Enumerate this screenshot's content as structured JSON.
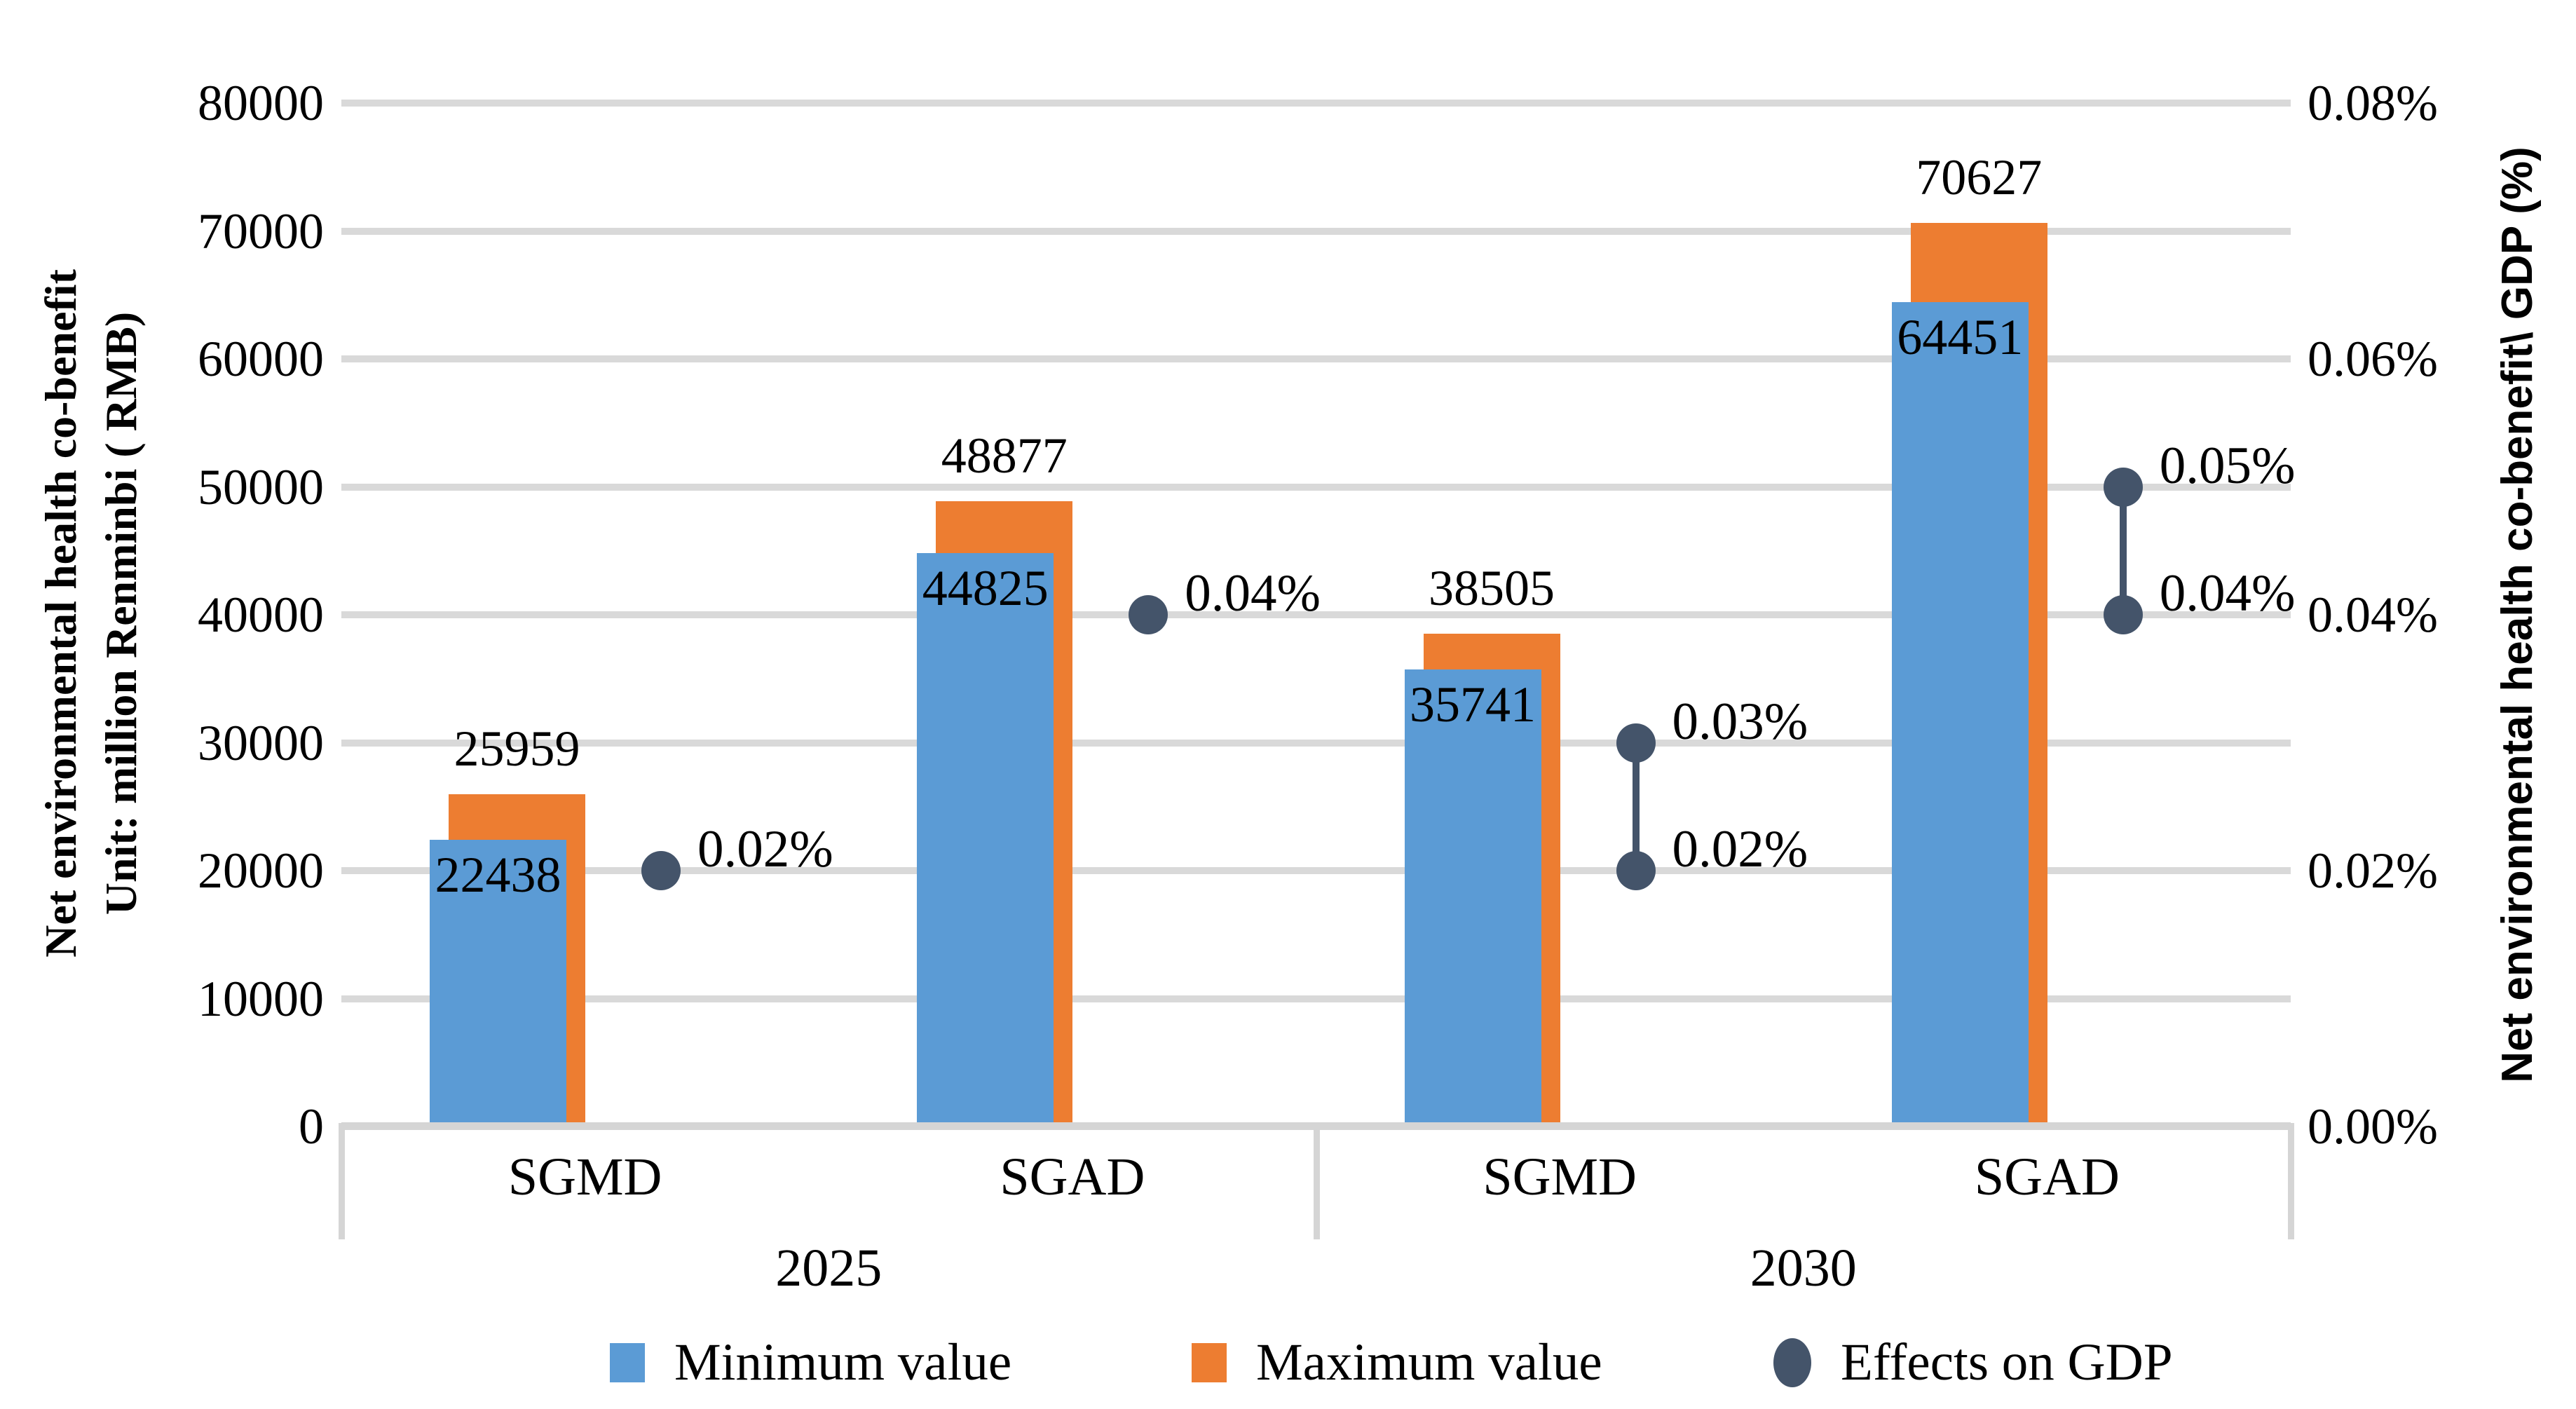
{
  "chart_data": {
    "type": "bar",
    "title": "",
    "left_axis": {
      "title_line1": "Net environmental health co-benefit",
      "title_line2": "Unit: million Renminbi ( RMB)",
      "min": 0,
      "max": 80000,
      "tick_step": 10000,
      "tick_labels": [
        "0",
        "10000",
        "20000",
        "30000",
        "40000",
        "50000",
        "60000",
        "70000",
        "80000"
      ]
    },
    "right_axis": {
      "title": "Net environmental health co-benefit\\ GDP (%)",
      "min": 0,
      "max": 0.08,
      "tick_labels": [
        "0.00%",
        "0.02%",
        "0.04%",
        "0.06%",
        "0.08%"
      ]
    },
    "grid": true,
    "legend_position": "bottom",
    "years": [
      "2025",
      "2030"
    ],
    "groups": [
      {
        "scenario": "SGMD",
        "year": "2025",
        "min": 22438,
        "max": 25959,
        "min_label": "22438",
        "max_label": "25959",
        "gdp": [
          {
            "value": 0.02,
            "label": "0.02%"
          }
        ]
      },
      {
        "scenario": "SGAD",
        "year": "2025",
        "min": 44825,
        "max": 48877,
        "min_label": "44825",
        "max_label": "48877",
        "gdp": [
          {
            "value": 0.04,
            "label": "0.04%"
          }
        ]
      },
      {
        "scenario": "SGMD",
        "year": "2030",
        "min": 35741,
        "max": 38505,
        "min_label": "35741",
        "max_label": "38505",
        "gdp": [
          {
            "value": 0.03,
            "label": "0.03%"
          },
          {
            "value": 0.02,
            "label": "0.02%"
          }
        ]
      },
      {
        "scenario": "SGAD",
        "year": "2030",
        "min": 64451,
        "max": 70627,
        "min_label": "64451",
        "max_label": "70627",
        "gdp": [
          {
            "value": 0.05,
            "label": "0.05%"
          },
          {
            "value": 0.04,
            "label": "0.04%"
          }
        ]
      }
    ],
    "series": [
      {
        "name": "Minimum value",
        "type": "bar",
        "color": "#5B9BD5",
        "values": [
          22438,
          44825,
          35741,
          64451
        ]
      },
      {
        "name": "Maximum value",
        "type": "bar",
        "color": "#ED7D31",
        "values": [
          25959,
          48877,
          38505,
          70627
        ]
      },
      {
        "name": "Effects on GDP",
        "type": "point",
        "color": "#44546A",
        "values": [
          [
            0.02
          ],
          [
            0.04
          ],
          [
            0.03,
            0.02
          ],
          [
            0.05,
            0.04
          ]
        ]
      }
    ]
  },
  "legend": [
    {
      "label": "Minimum value",
      "marker": "square",
      "color": "#5B9BD5"
    },
    {
      "label": "Maximum value",
      "marker": "square",
      "color": "#ED7D31"
    },
    {
      "label": "Effects on GDP",
      "marker": "circle",
      "color": "#44546A"
    }
  ],
  "colors": {
    "min_bar": "#5B9BD5",
    "max_bar": "#ED7D31",
    "gdp_dot": "#44546A",
    "gridline": "#D9D9D9",
    "axis_line": "#D5D5D5",
    "text": "#000000"
  }
}
